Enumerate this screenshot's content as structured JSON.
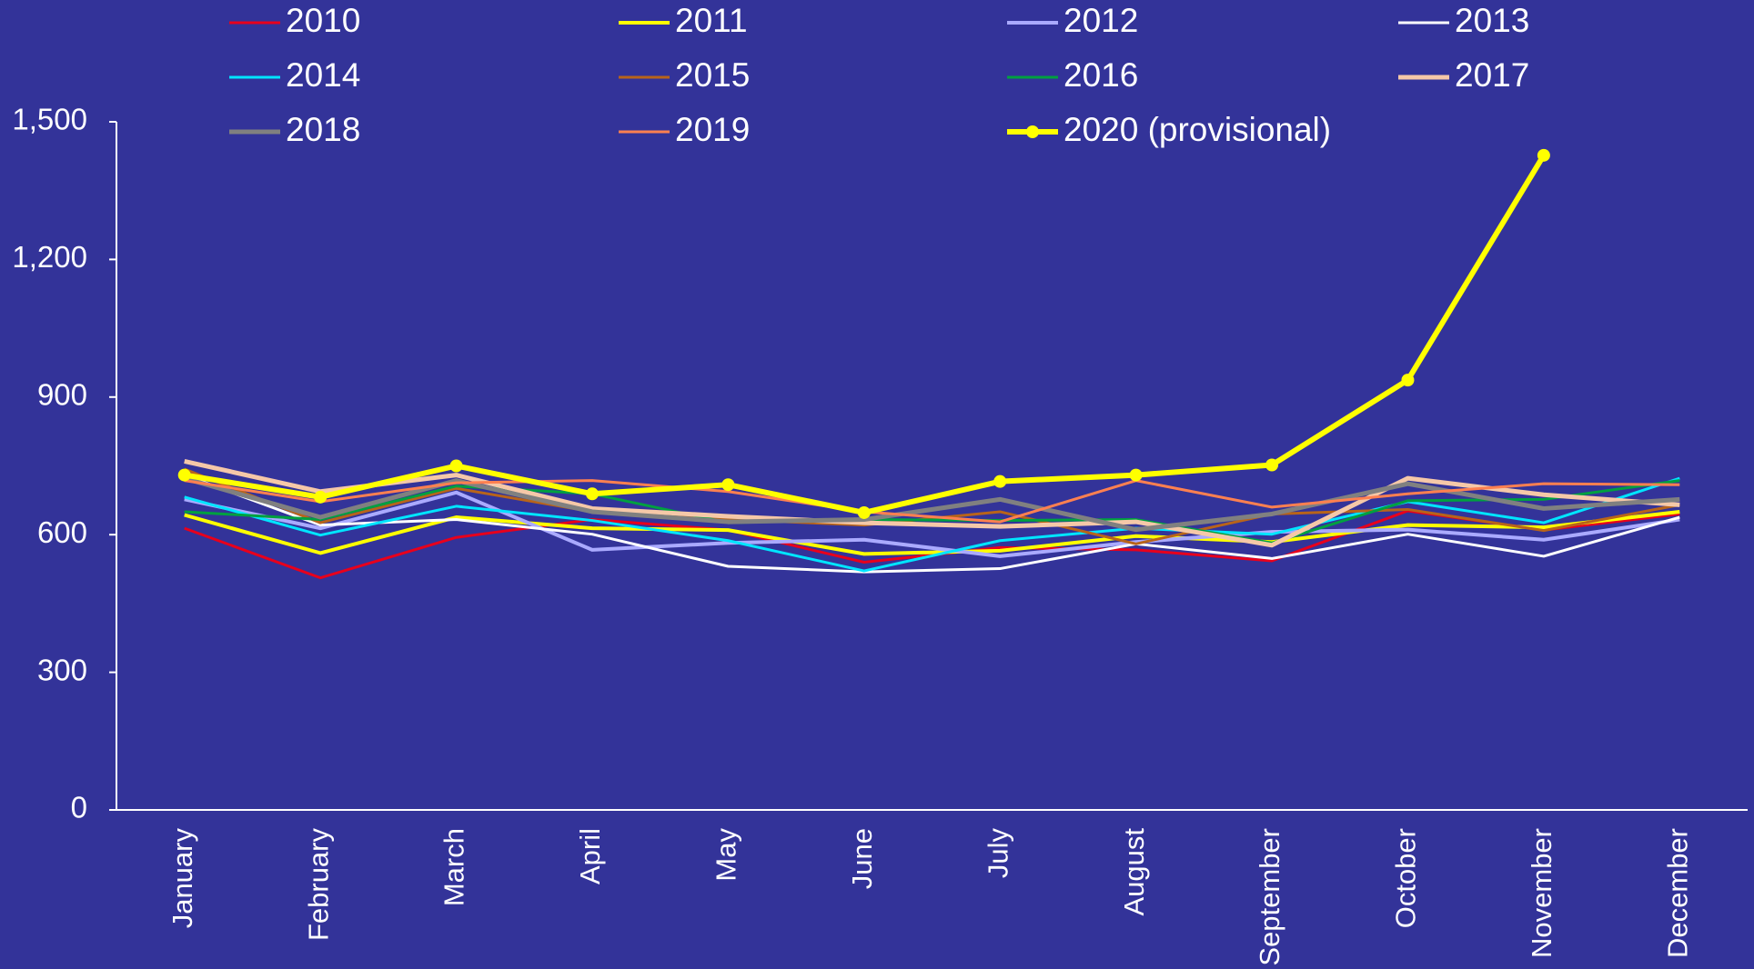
{
  "chart_data": {
    "type": "line",
    "categories": [
      "January",
      "February",
      "March",
      "April",
      "May",
      "June",
      "July",
      "August",
      "September",
      "October",
      "November",
      "December"
    ],
    "ylim": [
      0,
      1500
    ],
    "yticks": [
      0,
      300,
      600,
      900,
      {
        "value": 1200,
        "label": "1,200"
      },
      {
        "value": 1500,
        "label": "1,500"
      }
    ],
    "legend": "top",
    "series": [
      {
        "name": "2010",
        "color": "#e8001c",
        "width": 3,
        "values": [
          614,
          506,
          594,
          633,
          610,
          540,
          572,
          567,
          543,
          652,
          610,
          645
        ]
      },
      {
        "name": "2011",
        "color": "#ffff00",
        "width": 4,
        "values": [
          643,
          560,
          638,
          614,
          610,
          558,
          565,
          597,
          584,
          621,
          616,
          650
        ]
      },
      {
        "name": "2012",
        "color": "#aaaaff",
        "width": 4,
        "values": [
          677,
          614,
          692,
          567,
          582,
          589,
          553,
          584,
          606,
          611,
          589,
          633
        ]
      },
      {
        "name": "2013",
        "color": "#ffffff",
        "width": 3,
        "values": [
          730,
          621,
          633,
          601,
          531,
          519,
          526,
          580,
          548,
          601,
          553,
          638
        ]
      },
      {
        "name": "2014",
        "color": "#00e5ff",
        "width": 3,
        "values": [
          682,
          599,
          662,
          631,
          587,
          521,
          587,
          614,
          601,
          672,
          626,
          723
        ]
      },
      {
        "name": "2015",
        "color": "#b8641a",
        "width": 3,
        "values": [
          743,
          626,
          701,
          650,
          633,
          621,
          650,
          580,
          645,
          655,
          609,
          665
        ]
      },
      {
        "name": "2016",
        "color": "#00a040",
        "width": 3,
        "values": [
          650,
          633,
          706,
          689,
          626,
          633,
          631,
          633,
          582,
          674,
          677,
          718
        ]
      },
      {
        "name": "2017",
        "color": "#f5c8a8",
        "width": 5,
        "values": [
          760,
          694,
          730,
          657,
          640,
          626,
          618,
          628,
          577,
          723,
          687,
          665
        ]
      },
      {
        "name": "2018",
        "color": "#808080",
        "width": 5,
        "values": [
          723,
          638,
          718,
          650,
          628,
          633,
          677,
          611,
          645,
          711,
          657,
          677
        ]
      },
      {
        "name": "2019",
        "color": "#ff8050",
        "width": 3,
        "values": [
          718,
          672,
          713,
          718,
          694,
          650,
          628,
          718,
          660,
          689,
          711,
          709
        ]
      },
      {
        "name": "2020 (provisional)",
        "color": "#ffff00",
        "width": 6,
        "markers": true,
        "values": [
          730,
          682,
          750,
          689,
          709,
          648,
          716,
          730,
          752,
          937,
          1427,
          null
        ]
      }
    ]
  }
}
